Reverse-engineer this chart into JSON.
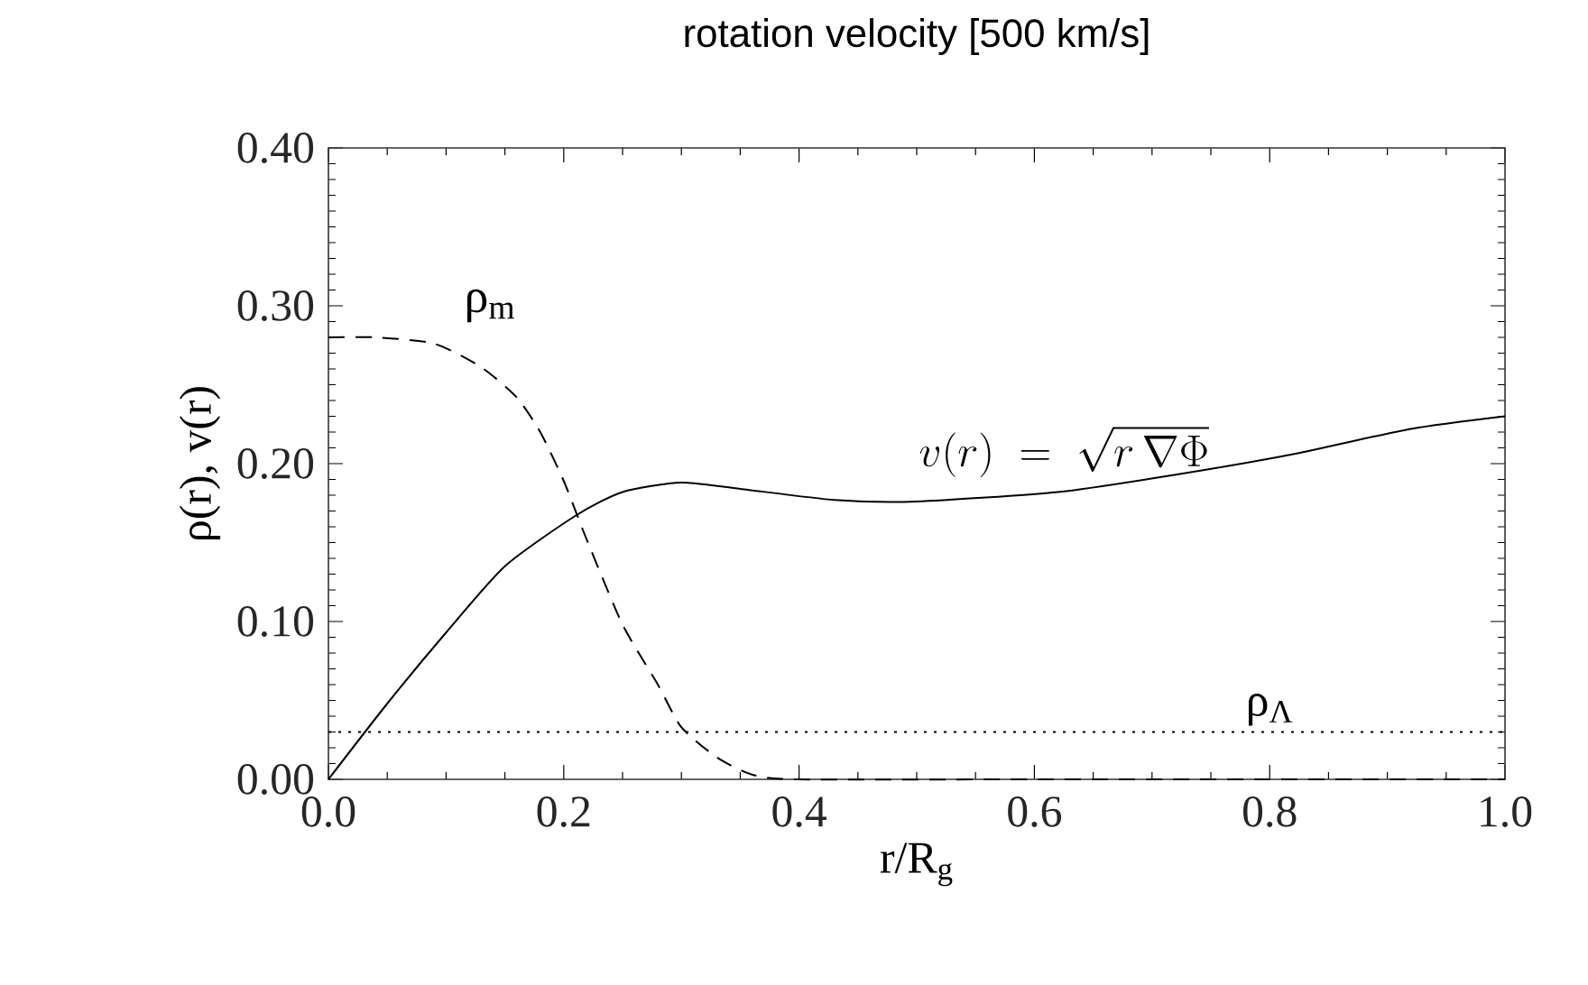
{
  "chart_data": {
    "type": "line",
    "title": "rotation velocity [500 km/s]",
    "xlabel": "r/R$_{g}$",
    "ylabel": "ρ(r), v(r)",
    "xlim": [
      0,
      1.0
    ],
    "ylim": [
      0,
      0.4
    ],
    "xticks": [
      {
        "value": 0,
        "label": "0.0"
      },
      {
        "value": 0.2,
        "label": "0.2"
      },
      {
        "value": 0.4,
        "label": "0.4"
      },
      {
        "value": 0.6,
        "label": "0.6"
      },
      {
        "value": 0.8,
        "label": "0.8"
      },
      {
        "value": 1.0,
        "label": "1.0"
      }
    ],
    "yticks": [
      {
        "value": 0,
        "label": "0.00"
      },
      {
        "value": 0.1,
        "label": "0.10"
      },
      {
        "value": 0.2,
        "label": "0.20"
      },
      {
        "value": 0.3,
        "label": "0.30"
      },
      {
        "value": 0.4,
        "label": "0.40"
      }
    ],
    "series": [
      {
        "name": "ρ$_{m}$",
        "color": "#000000",
        "line_style": "dashed",
        "x": [
          0,
          0.04,
          0.09,
          0.13,
          0.16,
          0.18,
          0.2,
          0.22,
          0.25,
          0.28,
          0.3,
          0.33,
          0.36,
          0.4,
          0.6,
          0.8,
          1.0
        ],
        "values": [
          0.28,
          0.28,
          0.276,
          0.261,
          0.242,
          0.22,
          0.189,
          0.151,
          0.098,
          0.06,
          0.033,
          0.014,
          0.003,
          0,
          0,
          0,
          0
        ]
      },
      {
        "name": "v(r)\\;=\\;\\sqrt{r\\,\\nabla\\Phi}",
        "color": "#000000",
        "line_style": "solid",
        "x": [
          0,
          0.05,
          0.1,
          0.15,
          0.21,
          0.25,
          0.3,
          0.35,
          0.43,
          0.5,
          0.62,
          0.72,
          0.82,
          0.92,
          1.0
        ],
        "values": [
          0,
          0.048,
          0.093,
          0.135,
          0.167,
          0.182,
          0.188,
          0.184,
          0.177,
          0.176,
          0.182,
          0.193,
          0.206,
          0.222,
          0.23
        ]
      }
    ],
    "ref_lines": [
      {
        "axis": "y",
        "value": 0.03,
        "label": "ρ$_{Λ}$",
        "line_style": "dotted",
        "color": "#000000"
      }
    ],
    "grid": false
  }
}
